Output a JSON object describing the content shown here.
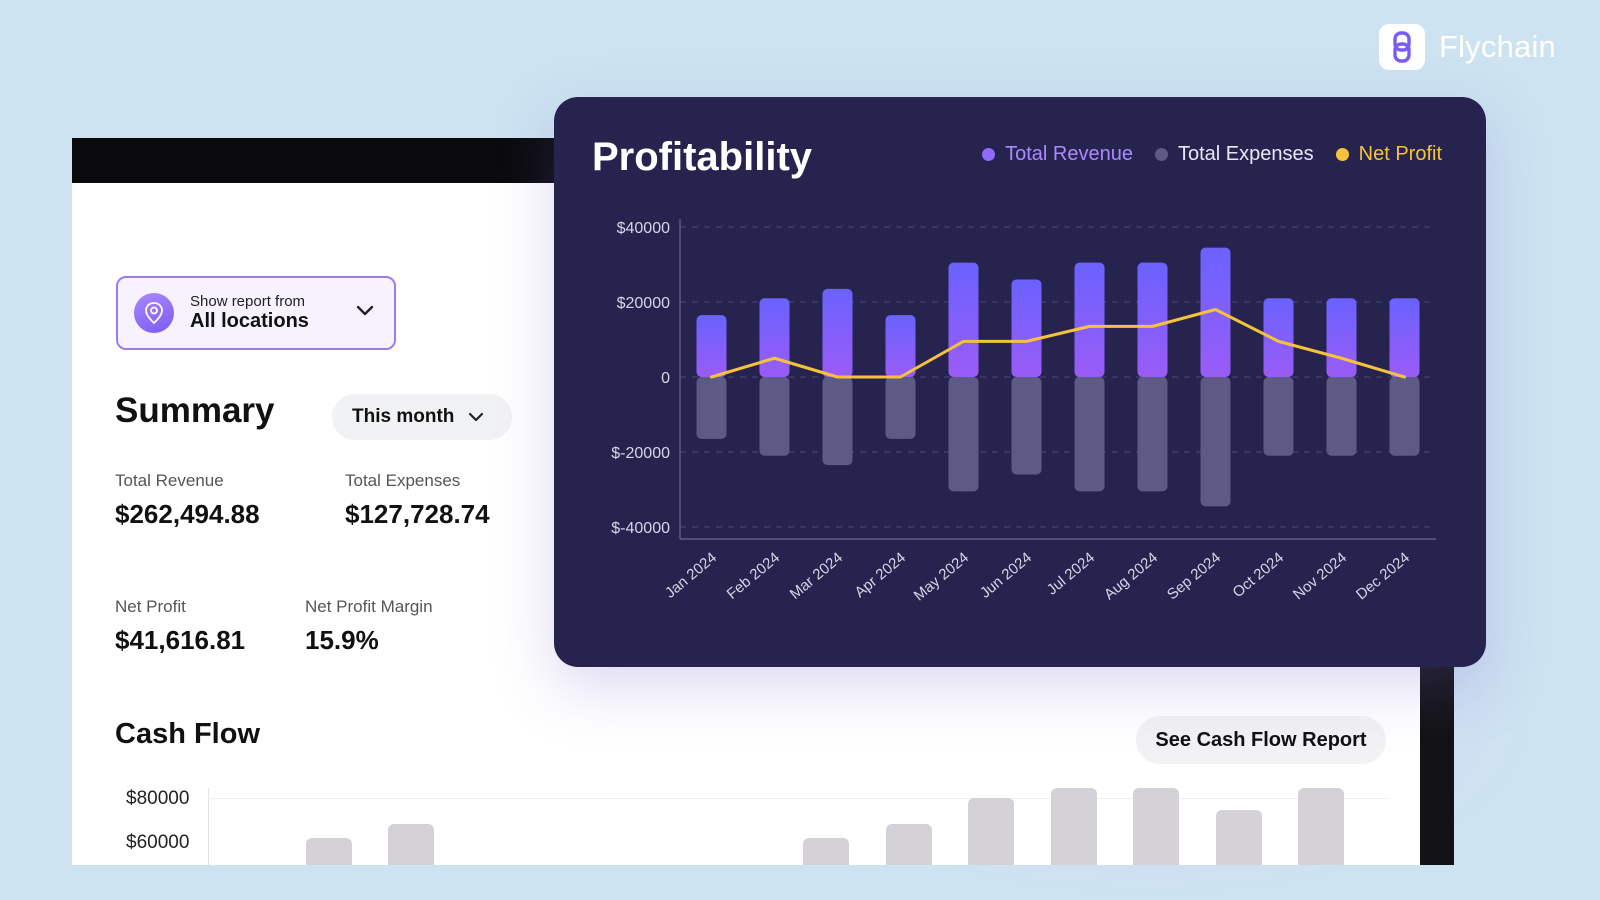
{
  "brand": {
    "name": "Flychain",
    "icon": "chain-link-icon"
  },
  "location_filter": {
    "caption": "Show report from",
    "value": "All locations",
    "icon": "location-pin-icon"
  },
  "summary": {
    "title": "Summary",
    "period": "This month",
    "metrics": [
      {
        "label": "Total Revenue",
        "value": "$262,494.88"
      },
      {
        "label": "Total Expenses",
        "value": "$127,728.74"
      },
      {
        "label": "Net Profit",
        "value": "$41,616.81"
      },
      {
        "label": "Net Profit Margin",
        "value": "15.9%"
      }
    ]
  },
  "cash_flow": {
    "title": "Cash Flow",
    "button_label": "See Cash Flow Report",
    "y_ticks": [
      "$80000",
      "$60000"
    ]
  },
  "profitability": {
    "title": "Profitability",
    "legend": [
      {
        "label": "Total Revenue",
        "color": "#8b6cff"
      },
      {
        "label": "Total Expenses",
        "color": "#5d5b86"
      },
      {
        "label": "Net Profit",
        "color": "#f5c33b"
      }
    ]
  },
  "chart_data": {
    "type": "bar",
    "title": "Profitability",
    "categories": [
      "Jan 2024",
      "Feb 2024",
      "Mar 2024",
      "Apr 2024",
      "May 2024",
      "Jun 2024",
      "Jul 2024",
      "Aug 2024",
      "Sep 2024",
      "Oct 2024",
      "Nov 2024",
      "Dec 2024"
    ],
    "series": [
      {
        "name": "Total Revenue",
        "type": "bar",
        "color": "#8b6cff",
        "values": [
          16500,
          21000,
          23500,
          16500,
          30500,
          26000,
          30500,
          30500,
          34500,
          21000,
          21000,
          21000
        ]
      },
      {
        "name": "Total Expenses",
        "type": "bar",
        "color": "#5d5b86",
        "values": [
          -16500,
          -21000,
          -23500,
          -16500,
          -30500,
          -26000,
          -30500,
          -30500,
          -34500,
          -21000,
          -21000,
          -21000
        ]
      },
      {
        "name": "Net Profit",
        "type": "line",
        "color": "#f5c33b",
        "values": [
          0,
          5000,
          0,
          0,
          9500,
          9500,
          13500,
          13500,
          18000,
          9500,
          5000,
          0
        ]
      }
    ],
    "y_ticks": [
      "$40000",
      "$20000",
      "0",
      "$-20000",
      "$-40000"
    ],
    "ylim": [
      -40000,
      40000
    ],
    "grid": true,
    "legend_position": "top-right"
  }
}
